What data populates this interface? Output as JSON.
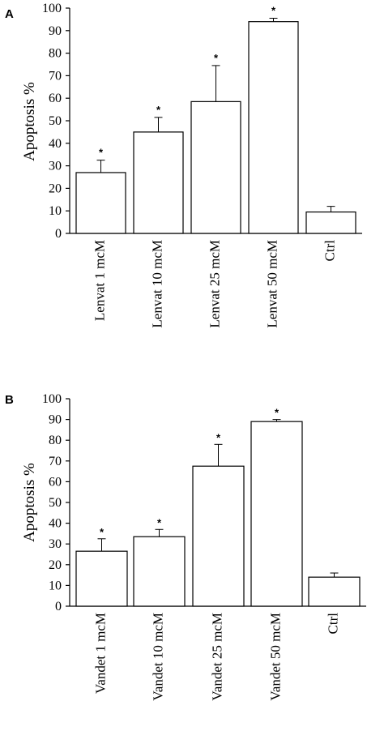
{
  "chart_data": [
    {
      "panel": "A",
      "type": "bar",
      "ylabel": "Apoptosis %",
      "ylim": [
        0,
        100
      ],
      "yticks": [
        "0",
        "10",
        "20",
        "30",
        "40",
        "50",
        "60",
        "70",
        "80",
        "90",
        "100"
      ],
      "categories": [
        "Lenvat 1 mcM",
        "Lenvat 10 mcM",
        "Lenvat 25 mcM",
        "Lenvat 50 mcM",
        "Ctrl"
      ],
      "values": [
        27,
        45,
        58.5,
        94,
        9.5
      ],
      "errors": [
        5.5,
        6.5,
        16,
        1.5,
        2.5
      ],
      "significance": [
        "*",
        "*",
        "*",
        "*",
        ""
      ]
    },
    {
      "panel": "B",
      "type": "bar",
      "ylabel": "Apoptosis %",
      "ylim": [
        0,
        100
      ],
      "yticks": [
        "0",
        "10",
        "20",
        "30",
        "40",
        "50",
        "60",
        "70",
        "80",
        "90",
        "100"
      ],
      "categories": [
        "Vandet 1 mcM",
        "Vandet 10 mcM",
        "Vandet 25 mcM",
        "Vandet 50 mcM",
        "Ctrl"
      ],
      "values": [
        26.5,
        33.5,
        67.5,
        89,
        14
      ],
      "errors": [
        6,
        3.5,
        10.5,
        1,
        2
      ],
      "significance": [
        "*",
        "*",
        "*",
        "*",
        ""
      ]
    }
  ]
}
